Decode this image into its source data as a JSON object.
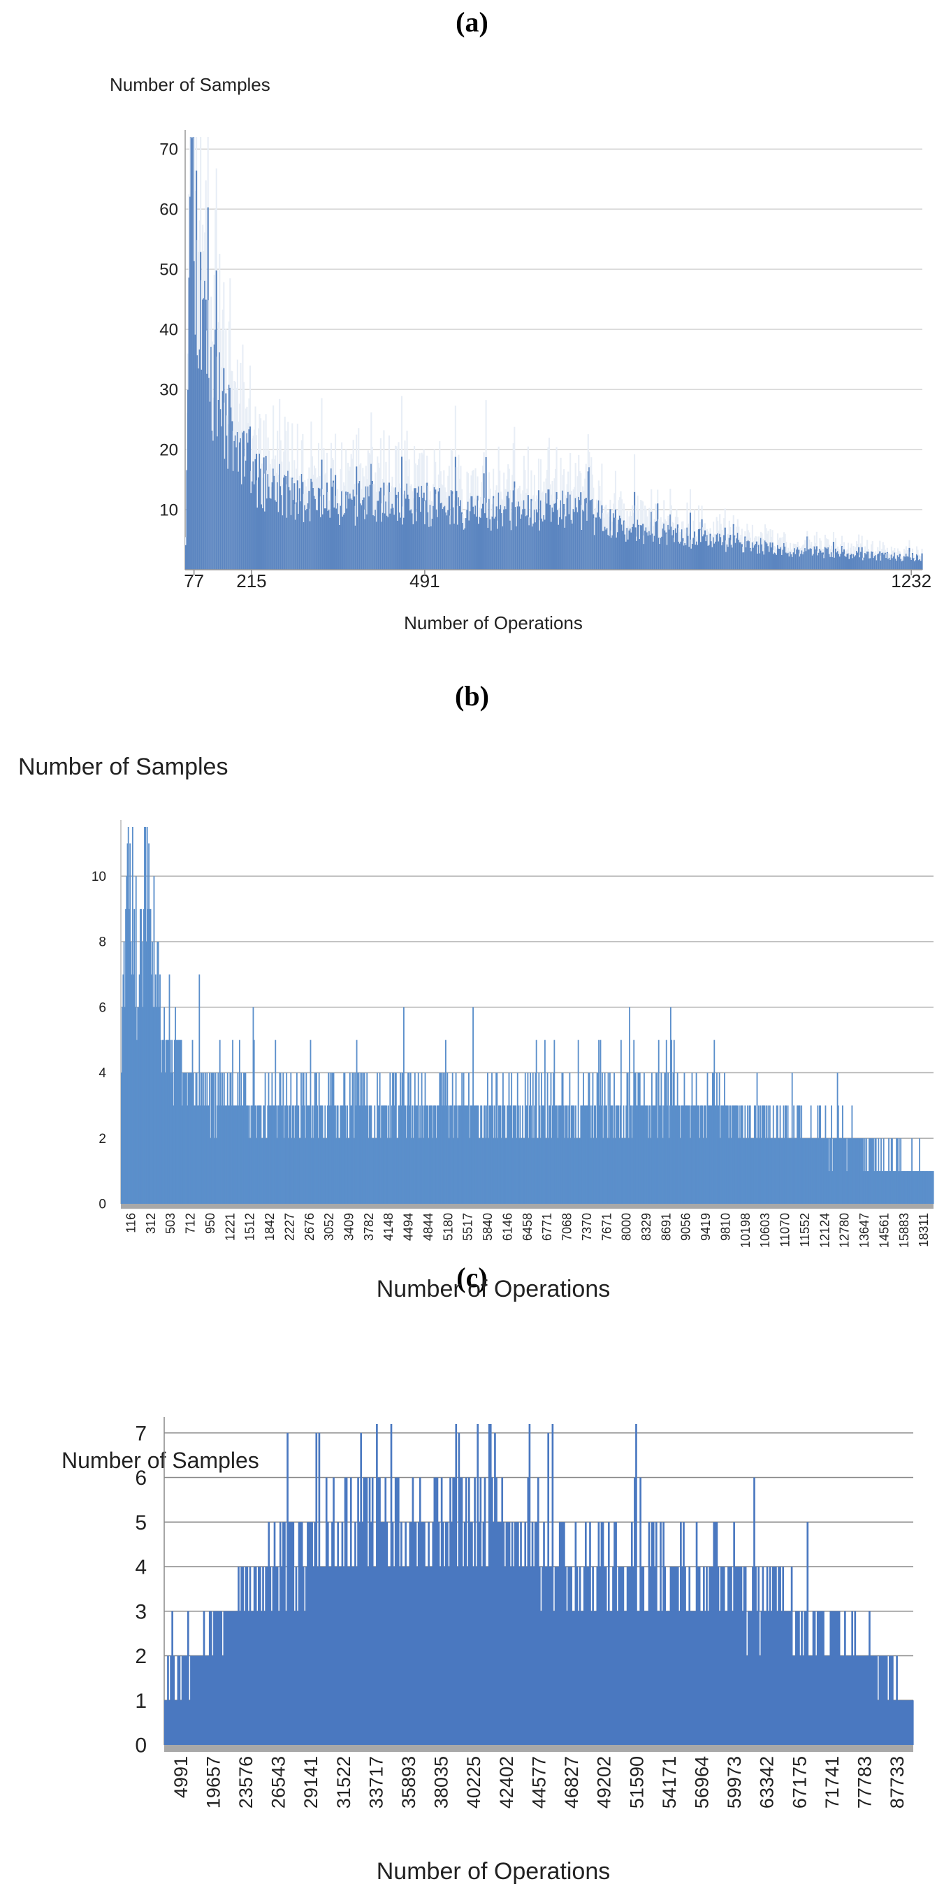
{
  "figure": {
    "panels": [
      "(a)",
      "(b)",
      "(c)"
    ]
  },
  "chart_data": [
    {
      "type": "bar",
      "panel": "(a)",
      "title": "",
      "ylabel": "Number of Samples",
      "xlabel": "Number of Operations",
      "ylim": [
        0,
        72
      ],
      "yticks": [
        10,
        20,
        30,
        40,
        50,
        60,
        70
      ],
      "x_tick_labels": [
        "77",
        "215",
        "491",
        "1232"
      ],
      "grid": true,
      "color": "#5b85c0",
      "series": [
        {
          "name": "samples",
          "profile": [
            [
              0.0,
              5
            ],
            [
              0.005,
              70
            ],
            [
              0.01,
              62
            ],
            [
              0.02,
              45
            ],
            [
              0.04,
              30
            ],
            [
              0.07,
              20
            ],
            [
              0.1,
              15
            ],
            [
              0.15,
              12
            ],
            [
              0.2,
              11
            ],
            [
              0.3,
              11
            ],
            [
              0.4,
              10
            ],
            [
              0.5,
              10
            ],
            [
              0.55,
              9
            ],
            [
              0.6,
              7
            ],
            [
              0.7,
              5
            ],
            [
              0.8,
              3.5
            ],
            [
              0.9,
              2.5
            ],
            [
              1.0,
              2
            ]
          ]
        }
      ]
    },
    {
      "type": "bar",
      "panel": "(b)",
      "title": "",
      "ylabel": "Number of Samples",
      "xlabel": "Number of Operations",
      "ylim": [
        0,
        11.5
      ],
      "yticks": [
        0,
        2,
        4,
        6,
        8,
        10
      ],
      "x_tick_labels": [
        "116",
        "312",
        "503",
        "712",
        "950",
        "1221",
        "1512",
        "1842",
        "2227",
        "2676",
        "3052",
        "3409",
        "3782",
        "4148",
        "4494",
        "4844",
        "5180",
        "5517",
        "5840",
        "6146",
        "6458",
        "6771",
        "7068",
        "7370",
        "7671",
        "8000",
        "8329",
        "8691",
        "9056",
        "9419",
        "9810",
        "10198",
        "10603",
        "11070",
        "11552",
        "12124",
        "12780",
        "13647",
        "14561",
        "15883",
        "18311"
      ],
      "grid": true,
      "color": "#5b8fcb",
      "series": [
        {
          "name": "samples",
          "profile": [
            [
              0.0,
              5
            ],
            [
              0.01,
              9
            ],
            [
              0.02,
              5
            ],
            [
              0.03,
              11
            ],
            [
              0.05,
              5
            ],
            [
              0.08,
              4
            ],
            [
              0.12,
              3
            ],
            [
              0.2,
              3
            ],
            [
              0.3,
              3
            ],
            [
              0.4,
              3
            ],
            [
              0.5,
              3
            ],
            [
              0.6,
              3
            ],
            [
              0.7,
              3
            ],
            [
              0.8,
              2.5
            ],
            [
              0.85,
              2
            ],
            [
              0.9,
              2
            ],
            [
              0.95,
              1.5
            ],
            [
              1.0,
              1
            ]
          ]
        }
      ]
    },
    {
      "type": "bar",
      "panel": "(c)",
      "title": "",
      "ylabel": "Number of Samples",
      "xlabel": "Number of Operations",
      "ylim": [
        0,
        7.2
      ],
      "yticks": [
        0,
        1,
        2,
        3,
        4,
        5,
        6,
        7
      ],
      "x_tick_labels": [
        "4991",
        "19657",
        "23576",
        "26543",
        "29141",
        "31522",
        "33717",
        "35893",
        "38035",
        "40225",
        "42402",
        "44577",
        "46827",
        "49202",
        "51590",
        "54171",
        "56964",
        "59973",
        "63342",
        "67175",
        "71741",
        "77783",
        "87733"
      ],
      "grid": true,
      "color": "#4a78c0",
      "series": [
        {
          "name": "samples",
          "profile": [
            [
              0.0,
              1.5
            ],
            [
              0.03,
              2
            ],
            [
              0.08,
              3
            ],
            [
              0.15,
              4
            ],
            [
              0.25,
              5
            ],
            [
              0.35,
              5
            ],
            [
              0.45,
              5
            ],
            [
              0.55,
              4
            ],
            [
              0.65,
              4
            ],
            [
              0.75,
              3.5
            ],
            [
              0.85,
              3
            ],
            [
              0.95,
              2
            ],
            [
              1.0,
              1
            ]
          ]
        }
      ]
    }
  ]
}
